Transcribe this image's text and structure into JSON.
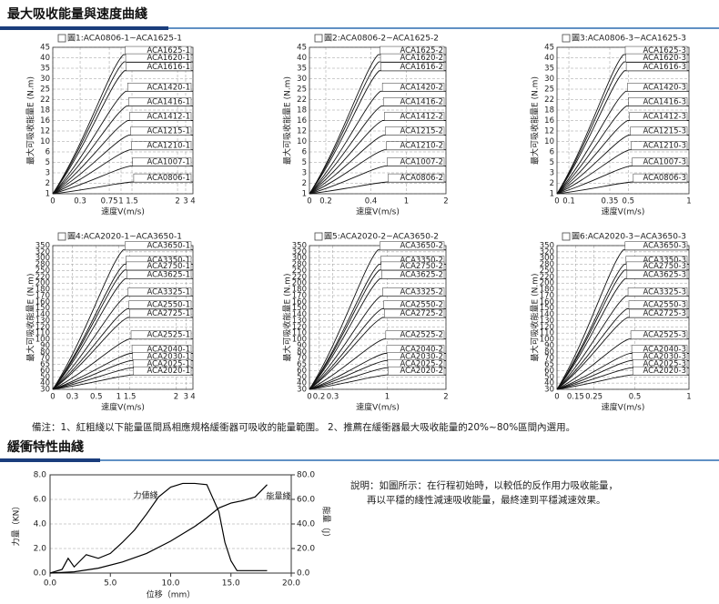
{
  "section1_title": "最大吸收能量與速度曲綫",
  "charts": [
    {
      "title": "圖1:ACA0806-1~ACA1625-1",
      "y_label": "最大可吸收能量E (N.m)",
      "x_label": "速度V(m/s)",
      "yticks": [
        45,
        40,
        35,
        30,
        25,
        22,
        18,
        16,
        12,
        10,
        6,
        5,
        3,
        2,
        1
      ],
      "xticks": [
        0,
        0.3,
        0.75,
        1,
        1.5,
        2,
        3,
        4
      ],
      "series": [
        "ACA1625-1",
        "ACA1620-1",
        "ACA1616-1",
        "ACA1420-1",
        "ACA1416-1",
        "ACA1412-1",
        "ACA1215-1",
        "ACA1210-1",
        "ACA1007-1",
        "ACA0806-1"
      ]
    },
    {
      "title": "圖2:ACA0806-2~ACA1625-2",
      "y_label": "最大可吸收能量E (N.m)",
      "x_label": "速度V(m/s)",
      "yticks": [
        45,
        40,
        35,
        30,
        25,
        22,
        18,
        16,
        12,
        10,
        6,
        5,
        3,
        2,
        1
      ],
      "xticks": [
        0,
        0.2,
        0.4,
        1,
        2
      ],
      "series": [
        "ACA1625-2",
        "ACA1620-2",
        "ACA1616-2",
        "ACA1420-2",
        "ACA1416-2",
        "ACA1412-2",
        "ACA1215-2",
        "ACA1210-2",
        "ACA1007-2",
        "ACA0806-2"
      ]
    },
    {
      "title": "圖3:ACA0806-3~ACA1625-3",
      "y_label": "最大可吸收能量E (N.m)",
      "x_label": "速度V(m/s)",
      "yticks": [
        45,
        40,
        35,
        30,
        25,
        22,
        18,
        16,
        12,
        10,
        6,
        5,
        3,
        2,
        1
      ],
      "xticks": [
        0,
        0.1,
        0.35,
        0.5,
        1
      ],
      "series": [
        "ACA1625-3",
        "ACA1620-3",
        "ACA1616-3",
        "ACA1420-3",
        "ACA1416-3",
        "ACA1412-3",
        "ACA1215-3",
        "ACA1210-3",
        "ACA1007-3",
        "ACA0806-3"
      ]
    },
    {
      "title": "圖4:ACA2020-1~ACA3650-1",
      "y_label": "最大可吸收能量E (N.m)",
      "x_label": "速度V(m/s)",
      "yticks": [
        350,
        320,
        300,
        280,
        250,
        220,
        200,
        180,
        170,
        160,
        150,
        140,
        130,
        120,
        110,
        100,
        90,
        80,
        70,
        65,
        60,
        50,
        40,
        30
      ],
      "xticks": [
        0,
        0.3,
        0.5,
        1,
        1.5,
        2,
        3,
        4
      ],
      "series": [
        "ACA3650-1",
        "ACA3350-1",
        "ACA2750-1",
        "ACA3625-1",
        "ACA3325-1",
        "ACA2550-1",
        "ACA2725-1",
        "ACA2525-1",
        "ACA2040-1",
        "ACA2030-1",
        "ACA2025-1",
        "ACA2020-1"
      ]
    },
    {
      "title": "圖5:ACA2020-2~ACA3650-2",
      "y_label": "最大可吸收能量E (N.m)",
      "x_label": "速度V(m/s)",
      "yticks": [
        350,
        320,
        300,
        280,
        250,
        220,
        200,
        180,
        170,
        160,
        150,
        140,
        130,
        120,
        110,
        100,
        90,
        80,
        70,
        65,
        60,
        50,
        40,
        30
      ],
      "xticks": [
        0,
        0.2,
        0.3,
        1,
        2
      ],
      "series": [
        "ACA3650-2",
        "ACA3350-2",
        "ACA2750-2",
        "ACA3625-2",
        "ACA3325-2",
        "ACA2550-2",
        "ACA2725-2",
        "ACA2525-2",
        "ACA2040-2",
        "ACA2030-2",
        "ACA2025-2",
        "ACA2020-2"
      ]
    },
    {
      "title": "圖6:ACA2020-3~ACA3650-3",
      "y_label": "最大可吸收能量E (N.m)",
      "x_label": "速度V(m/s)",
      "yticks": [
        350,
        320,
        300,
        280,
        250,
        220,
        200,
        180,
        170,
        160,
        150,
        140,
        130,
        120,
        110,
        100,
        90,
        80,
        70,
        65,
        60,
        50,
        40,
        30
      ],
      "xticks": [
        0,
        0.15,
        0.25,
        0.5,
        1
      ],
      "series": [
        "ACA3650-3",
        "ACA3350-3",
        "ACA2750-3",
        "ACA3625-3",
        "ACA3325-3",
        "ACA2550-3",
        "ACA2725-3",
        "ACA2525-3",
        "ACA2040-3",
        "ACA2030-3",
        "ACA2025-3",
        "ACA2020-3"
      ]
    }
  ],
  "note": "備注：1、紅粗綫以下能量區間爲相應規格緩衝器可吸收的能量範圍。 2、推薦在緩衝器最大吸收能量的20%~80%區間內選用。",
  "section2_title": "緩衝特性曲綫",
  "force_chart": {
    "type": "line",
    "x_label": "位移（mm）",
    "y_label": "力量（KN）",
    "y2_label": "能量（J）",
    "xlim": [
      0,
      20
    ],
    "xticks": [
      {
        "value": 0,
        "label": "0.0"
      },
      {
        "value": 5,
        "label": "5.0"
      },
      {
        "value": 10,
        "label": "10.0"
      },
      {
        "value": 15,
        "label": "15.0"
      },
      {
        "value": 20,
        "label": "20.0"
      }
    ],
    "ylim": [
      0,
      8
    ],
    "yticks": [
      {
        "value": 0,
        "label": "0.0"
      },
      {
        "value": 2,
        "label": "2.0"
      },
      {
        "value": 4,
        "label": "4.0"
      },
      {
        "value": 6,
        "label": "6.0"
      },
      {
        "value": 8,
        "label": "8.0"
      }
    ],
    "y2lim": [
      0,
      80
    ],
    "y2ticks": [
      {
        "value": 0,
        "label": "0.0"
      },
      {
        "value": 20,
        "label": "20.0"
      },
      {
        "value": 40,
        "label": "40.0"
      },
      {
        "value": 60,
        "label": "60.0"
      },
      {
        "value": 80,
        "label": "80.0"
      }
    ],
    "series": [
      {
        "name": "力値綫",
        "color": "#000000",
        "x": [
          0,
          1,
          1.5,
          2,
          3,
          4,
          5,
          6,
          7,
          8,
          9,
          10,
          11,
          12,
          13,
          14,
          14.5,
          15,
          15.5,
          18
        ],
        "values": [
          0,
          0.3,
          1.2,
          0.5,
          1.5,
          1.2,
          1.6,
          2.5,
          3.5,
          4.8,
          6.2,
          7,
          7.3,
          7.3,
          7.2,
          5,
          2.5,
          1,
          0.2,
          0.2
        ]
      },
      {
        "name": "能量綫",
        "color": "#000000",
        "axis": "y2",
        "x": [
          0,
          2,
          4,
          6,
          8,
          10,
          12,
          13,
          14,
          15,
          16,
          17,
          18
        ],
        "values": [
          0,
          1,
          4,
          9,
          16,
          26,
          38,
          45,
          53,
          57,
          59,
          62,
          72
        ]
      }
    ]
  },
  "explanation": [
    "說明：如圖所示：在行程初始時，以較低的反作用力吸收能量，",
    "再以平穩的綫性減速吸收能量，最終達到平穩減速效果。"
  ]
}
